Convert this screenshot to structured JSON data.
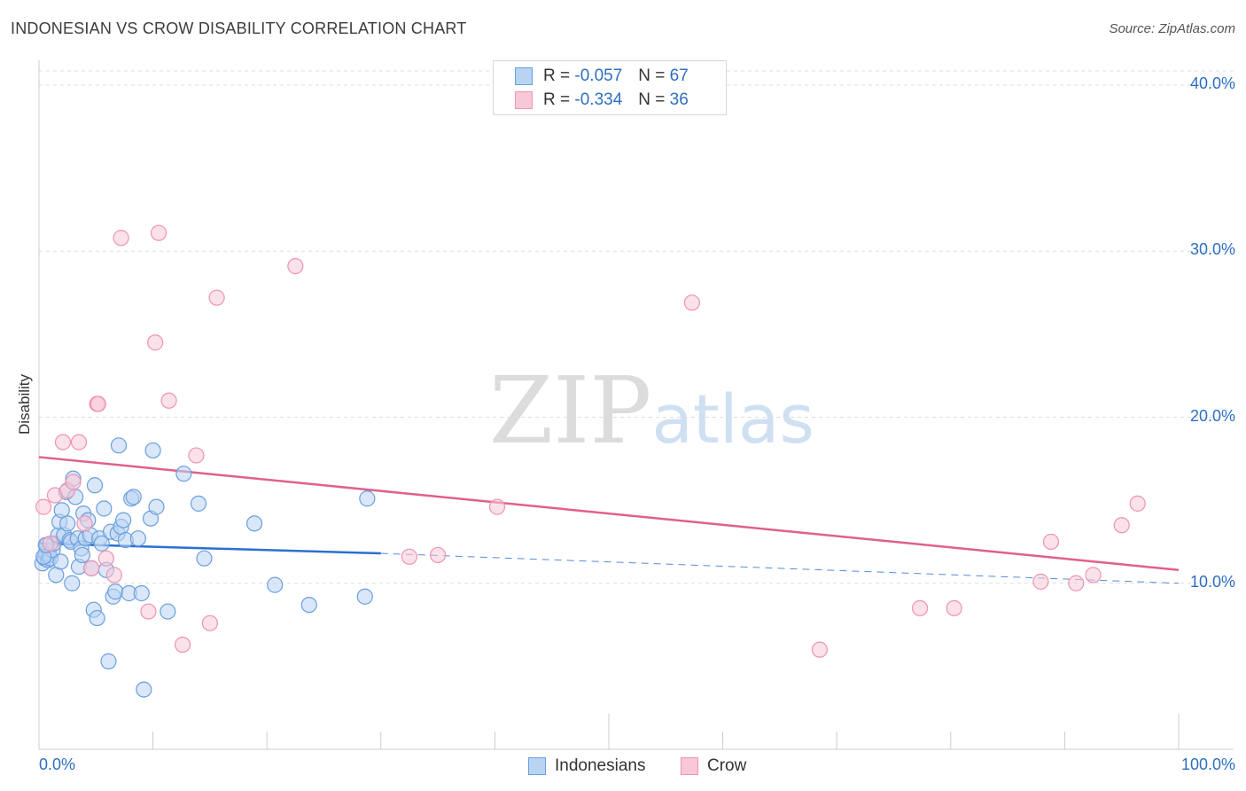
{
  "title": "INDONESIAN VS CROW DISABILITY CORRELATION CHART",
  "source": "Source: ZipAtlas.com",
  "watermark": {
    "zip": "ZIP",
    "atlas": "atlas"
  },
  "colors": {
    "blue": "#6a9fdf",
    "blue_fill": "#b9d3f3",
    "pink": "#ee94b0",
    "pink_fill": "#f8c8d8",
    "blue_line": "#2a70d0",
    "pink_line": "#e0608c",
    "tick_text": "#2d6ec2"
  },
  "legend_top": {
    "series": [
      {
        "r_label": "R =",
        "r_value": "-0.057",
        "n_label": "N =",
        "n_value": "67"
      },
      {
        "r_label": "R =",
        "r_value": "-0.334",
        "n_label": "N =",
        "n_value": "36"
      }
    ]
  },
  "legend_bottom": {
    "items": [
      "Indonesians",
      "Crow"
    ]
  },
  "chart_data": {
    "type": "scatter",
    "title": "INDONESIAN VS CROW DISABILITY CORRELATION CHART",
    "xlabel": "",
    "ylabel": "Disability",
    "xlim": [
      0,
      100
    ],
    "ylim": [
      0,
      40
    ],
    "x_tick_labels": [
      "0.0%",
      "100.0%"
    ],
    "y_ticks": [
      10,
      20,
      30,
      40
    ],
    "y_tick_labels": [
      "10.0%",
      "20.0%",
      "30.0%",
      "40.0%"
    ],
    "grid": true,
    "legend_position": "top-center",
    "series": [
      {
        "name": "Indonesians",
        "r": -0.057,
        "n": 67,
        "trend": {
          "x0": 0,
          "y0": 12.4,
          "x1": 30,
          "y1": 11.8,
          "dashed_to_x": 100,
          "dashed_to_y": 10.0
        },
        "points": [
          [
            0.3,
            11.2
          ],
          [
            0.5,
            11.5
          ],
          [
            0.6,
            11.8
          ],
          [
            0.7,
            12.3
          ],
          [
            0.8,
            11.4
          ],
          [
            0.9,
            11.7
          ],
          [
            1.0,
            11.5
          ],
          [
            1.2,
            12.0
          ],
          [
            1.3,
            12.4
          ],
          [
            1.5,
            10.5
          ],
          [
            1.7,
            12.9
          ],
          [
            1.8,
            13.7
          ],
          [
            1.9,
            11.3
          ],
          [
            2.0,
            14.4
          ],
          [
            2.2,
            12.9
          ],
          [
            2.4,
            15.5
          ],
          [
            2.5,
            13.6
          ],
          [
            2.7,
            12.6
          ],
          [
            2.8,
            12.5
          ],
          [
            2.9,
            10.0
          ],
          [
            3.0,
            16.3
          ],
          [
            3.2,
            15.2
          ],
          [
            3.4,
            12.7
          ],
          [
            3.5,
            11.0
          ],
          [
            3.7,
            12.1
          ],
          [
            3.8,
            11.7
          ],
          [
            3.9,
            14.2
          ],
          [
            4.1,
            12.7
          ],
          [
            4.3,
            13.8
          ],
          [
            4.5,
            12.9
          ],
          [
            4.6,
            10.9
          ],
          [
            4.8,
            8.4
          ],
          [
            4.9,
            15.9
          ],
          [
            5.1,
            7.9
          ],
          [
            5.3,
            12.7
          ],
          [
            5.5,
            12.4
          ],
          [
            5.7,
            14.5
          ],
          [
            5.9,
            10.8
          ],
          [
            6.1,
            5.3
          ],
          [
            6.3,
            13.1
          ],
          [
            6.5,
            9.2
          ],
          [
            6.7,
            9.5
          ],
          [
            6.9,
            13.0
          ],
          [
            7.0,
            18.3
          ],
          [
            7.2,
            13.4
          ],
          [
            7.4,
            13.8
          ],
          [
            7.6,
            12.6
          ],
          [
            7.9,
            9.4
          ],
          [
            8.1,
            15.1
          ],
          [
            8.3,
            15.2
          ],
          [
            8.7,
            12.7
          ],
          [
            9.0,
            9.4
          ],
          [
            9.2,
            3.6
          ],
          [
            9.8,
            13.9
          ],
          [
            10.0,
            18.0
          ],
          [
            10.3,
            14.6
          ],
          [
            11.3,
            8.3
          ],
          [
            12.7,
            16.6
          ],
          [
            14.0,
            14.8
          ],
          [
            14.5,
            11.5
          ],
          [
            18.9,
            13.6
          ],
          [
            20.7,
            9.9
          ],
          [
            23.7,
            8.7
          ],
          [
            28.6,
            9.2
          ],
          [
            28.8,
            15.1
          ],
          [
            0.4,
            11.6
          ],
          [
            0.6,
            12.3
          ]
        ]
      },
      {
        "name": "Crow",
        "r": -0.334,
        "n": 36,
        "trend": {
          "x0": 0,
          "y0": 17.6,
          "x1": 100,
          "y1": 10.8
        },
        "points": [
          [
            0.4,
            14.6
          ],
          [
            1.4,
            15.3
          ],
          [
            2.1,
            18.5
          ],
          [
            2.5,
            15.6
          ],
          [
            3.0,
            16.1
          ],
          [
            3.5,
            18.5
          ],
          [
            4.0,
            13.6
          ],
          [
            4.6,
            10.9
          ],
          [
            5.1,
            20.8
          ],
          [
            5.2,
            20.8
          ],
          [
            5.9,
            11.5
          ],
          [
            6.6,
            10.5
          ],
          [
            7.2,
            30.8
          ],
          [
            9.6,
            8.3
          ],
          [
            10.2,
            24.5
          ],
          [
            10.5,
            31.1
          ],
          [
            11.4,
            21.0
          ],
          [
            12.6,
            6.3
          ],
          [
            13.8,
            17.7
          ],
          [
            15.0,
            7.6
          ],
          [
            15.6,
            27.2
          ],
          [
            22.5,
            29.1
          ],
          [
            32.5,
            11.6
          ],
          [
            35.0,
            11.7
          ],
          [
            40.2,
            14.6
          ],
          [
            57.3,
            26.9
          ],
          [
            68.5,
            6.0
          ],
          [
            77.3,
            8.5
          ],
          [
            80.3,
            8.5
          ],
          [
            87.9,
            10.1
          ],
          [
            88.8,
            12.5
          ],
          [
            91.0,
            10.0
          ],
          [
            92.5,
            10.5
          ],
          [
            95.0,
            13.5
          ],
          [
            96.4,
            14.8
          ],
          [
            1.0,
            12.4
          ]
        ]
      }
    ]
  }
}
